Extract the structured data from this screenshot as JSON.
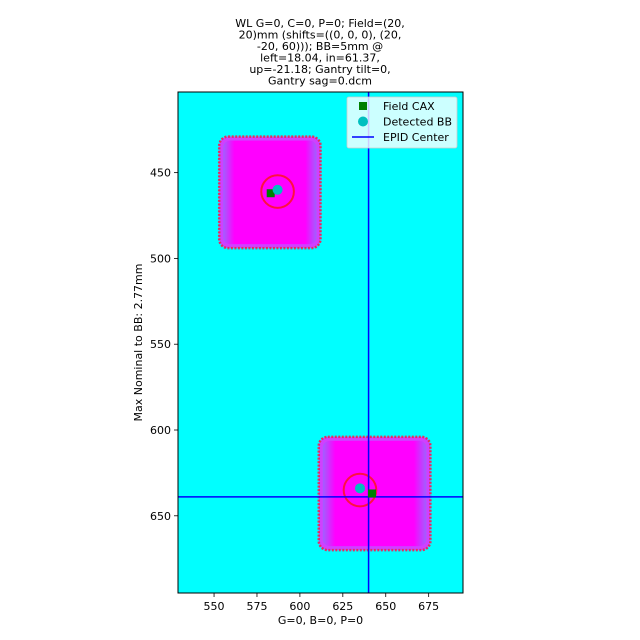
{
  "chart_data": {
    "type": "image",
    "title": [
      "WL G=0, C=0, P=0; Field=(20,",
      "20)mm (shifts=((0, 0, 0), (20,",
      "-20, 60))); BB=5mm @",
      "left=18.04, in=61.37,",
      "up=-21.18; Gantry tilt=0,",
      "Gantry sag=0.dcm"
    ],
    "xlabel": "G=0, B=0, P=0",
    "ylabel": "Max Nominal to BB: 2.77mm",
    "xlim": [
      529,
      695
    ],
    "ylim": [
      695,
      403
    ],
    "y_inverted": true,
    "x_ticks": [
      550,
      575,
      600,
      625,
      650,
      675
    ],
    "y_ticks": [
      450,
      500,
      550,
      600,
      650
    ],
    "x_tick_labels": [
      "550",
      "575",
      "600",
      "625",
      "650",
      "675"
    ],
    "y_tick_labels": [
      "450",
      "500",
      "550",
      "600",
      "650"
    ],
    "background_color": "#00ffff",
    "fields": [
      {
        "x0": 553,
        "x1": 612,
        "y0": 429,
        "y1": 494,
        "color": "#ff00ff"
      },
      {
        "x0": 611,
        "x1": 676,
        "y0": 604,
        "y1": 670,
        "color": "#ff00ff"
      }
    ],
    "bb_rings": [
      {
        "cx": 587,
        "cy": 461,
        "r": 9.5
      },
      {
        "cx": 635,
        "cy": 635,
        "r": 9.5
      }
    ],
    "field_cax": [
      {
        "x": 583,
        "y": 462
      },
      {
        "x": 642,
        "y": 637
      }
    ],
    "detected_bb": [
      {
        "x": 587,
        "y": 460
      },
      {
        "x": 635,
        "y": 634
      }
    ],
    "epid_center": {
      "x": 640,
      "y": 639
    },
    "legend": {
      "position": "upper right",
      "entries": [
        {
          "label": "Field CAX",
          "marker": "square",
          "color": "#008000"
        },
        {
          "label": "Detected BB",
          "marker": "circle",
          "color": "#00bfbf"
        },
        {
          "label": "EPID Center",
          "marker": "line",
          "color": "#0000ff"
        }
      ]
    }
  }
}
